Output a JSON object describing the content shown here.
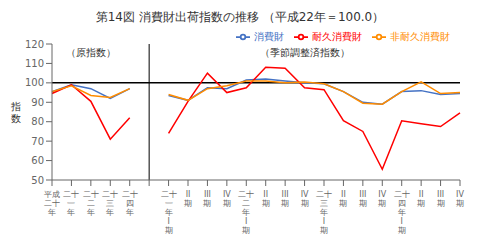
{
  "chart_data": {
    "type": "line",
    "title": "第14図  消費財出荷指数の推移  （平成22年＝100.0）",
    "ylabel": "指\n数",
    "categories": [
      "平成\n二十\n年",
      "二十\n一\n年",
      "二十\n二\n年",
      "二十\n三\n年",
      "二十\n四\n年",
      null,
      "二十\n一\n年\nI\n期",
      "II\n期",
      "III\n期",
      "IV\n期",
      "二十\n二\n年\nI\n期",
      "II\n期",
      "III\n期",
      "IV\n期",
      "二十\n三\n年\nI\n期",
      "II\n期",
      "III\n期",
      "IV\n期",
      "二十\n四\n年\nI\n期",
      "II\n期",
      "III\n期",
      "IV\n期"
    ],
    "series": [
      {
        "name": "消費財",
        "color": "#4472c4",
        "values": [
          95.5,
          99.0,
          97.0,
          92.0,
          97.0,
          null,
          93.5,
          91.0,
          97.5,
          97.0,
          101.5,
          102.0,
          101.0,
          100.0,
          99.5,
          95.5,
          90.0,
          89.0,
          95.5,
          96.0,
          94.0,
          94.5
        ]
      },
      {
        "name": "耐久消費財",
        "color": "#ff0000",
        "values": [
          94.5,
          99.0,
          90.5,
          71.0,
          82.0,
          null,
          74.0,
          90.5,
          105.0,
          95.0,
          97.5,
          108.0,
          107.5,
          97.5,
          96.5,
          80.5,
          75.0,
          55.5,
          80.5,
          79.0,
          77.5,
          84.5
        ]
      },
      {
        "name": "非耐久消費財",
        "color": "#ff8c00",
        "values": [
          95.5,
          98.5,
          93.5,
          92.5,
          97.0,
          null,
          94.0,
          91.0,
          97.0,
          98.5,
          101.0,
          101.0,
          100.0,
          100.5,
          99.5,
          95.5,
          89.5,
          89.0,
          95.5,
          100.5,
          94.5,
          95.0
        ]
      }
    ],
    "ylim": [
      50,
      120
    ],
    "yticks": [
      50,
      60,
      70,
      80,
      90,
      100,
      110,
      120
    ],
    "hline": 100,
    "annotations": [
      "（原指数）",
      "（季節調整済指数）"
    ],
    "legend": "upper right",
    "grid": false
  }
}
